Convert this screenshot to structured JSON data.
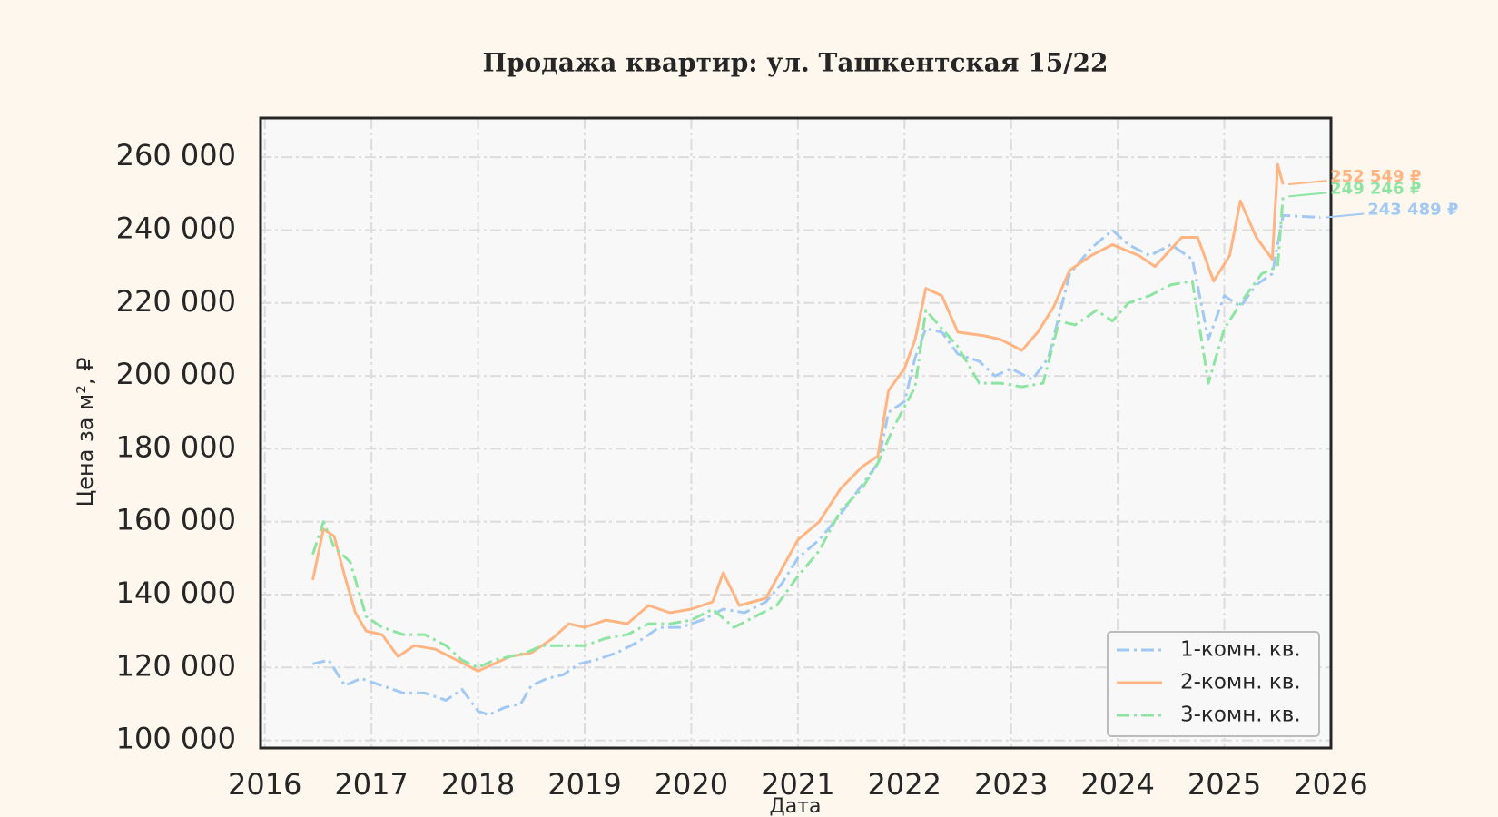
{
  "chart_data": {
    "type": "line",
    "title": "Продажа квартир: ул. Ташкентская 15/22",
    "x_label": "Дата",
    "y_label": "Цена за м², ₽",
    "xlim": [
      2015.96,
      2026.0
    ],
    "xticks": [
      2016,
      2017,
      2018,
      2019,
      2020,
      2021,
      2022,
      2023,
      2024,
      2025,
      2026
    ],
    "ylim": [
      97900,
      270750
    ],
    "yticks": [
      {
        "value": 100000,
        "label": "100 000"
      },
      {
        "value": 120000,
        "label": "120 000"
      },
      {
        "value": 140000,
        "label": "140 000"
      },
      {
        "value": 160000,
        "label": "160 000"
      },
      {
        "value": 180000,
        "label": "180 000"
      },
      {
        "value": 200000,
        "label": "200 000"
      },
      {
        "value": 220000,
        "label": "220 000"
      },
      {
        "value": 240000,
        "label": "240 000"
      },
      {
        "value": 260000,
        "label": "260 000"
      }
    ],
    "grid": true,
    "legend": "lower right",
    "series": [
      {
        "name": "1-комн. кв.",
        "color": "#a1c9f4",
        "dash": "dashdot",
        "x": [
          2016.45,
          2016.6,
          2016.75,
          2016.9,
          2017.1,
          2017.3,
          2017.5,
          2017.7,
          2017.85,
          2018.0,
          2018.1,
          2018.25,
          2018.4,
          2018.5,
          2018.65,
          2018.8,
          2018.95,
          2019.1,
          2019.3,
          2019.5,
          2019.7,
          2019.9,
          2020.1,
          2020.3,
          2020.5,
          2020.7,
          2020.85,
          2021.0,
          2021.2,
          2021.4,
          2021.6,
          2021.75,
          2021.85,
          2022.0,
          2022.1,
          2022.2,
          2022.35,
          2022.5,
          2022.7,
          2022.85,
          2023.0,
          2023.2,
          2023.35,
          2023.55,
          2023.75,
          2023.95,
          2024.1,
          2024.3,
          2024.5,
          2024.7,
          2024.85,
          2025.0,
          2025.15,
          2025.3,
          2025.45,
          2025.55,
          2025.9
        ],
        "values": [
          121000,
          122000,
          115000,
          117000,
          115000,
          113000,
          113000,
          111000,
          114000,
          108000,
          107000,
          109000,
          110000,
          115000,
          117000,
          118000,
          121000,
          122000,
          124000,
          127000,
          131000,
          131000,
          133000,
          136000,
          135000,
          138000,
          143000,
          150000,
          155000,
          162000,
          170000,
          176000,
          190000,
          193000,
          205000,
          213000,
          212000,
          206000,
          204000,
          200000,
          202000,
          199000,
          205000,
          228000,
          235000,
          240000,
          236000,
          233000,
          236000,
          232000,
          210000,
          222000,
          219000,
          225000,
          228000,
          244000,
          243489
        ]
      },
      {
        "name": "2-комн. кв.",
        "color": "#ffb482",
        "dash": "solid",
        "x": [
          2016.45,
          2016.55,
          2016.65,
          2016.75,
          2016.85,
          2016.95,
          2017.1,
          2017.25,
          2017.4,
          2017.6,
          2017.8,
          2018.0,
          2018.15,
          2018.3,
          2018.5,
          2018.7,
          2018.85,
          2019.0,
          2019.2,
          2019.4,
          2019.6,
          2019.8,
          2020.0,
          2020.2,
          2020.3,
          2020.45,
          2020.7,
          2020.85,
          2021.0,
          2021.2,
          2021.4,
          2021.6,
          2021.75,
          2021.85,
          2022.0,
          2022.1,
          2022.2,
          2022.35,
          2022.5,
          2022.75,
          2022.9,
          2023.1,
          2023.25,
          2023.4,
          2023.55,
          2023.75,
          2023.95,
          2024.2,
          2024.35,
          2024.6,
          2024.75,
          2024.9,
          2025.05,
          2025.15,
          2025.3,
          2025.45,
          2025.5,
          2025.55
        ],
        "values": [
          144000,
          158000,
          156000,
          145000,
          135000,
          130000,
          129000,
          123000,
          126000,
          125000,
          122000,
          119000,
          121000,
          123000,
          124000,
          128000,
          132000,
          131000,
          133000,
          132000,
          137000,
          135000,
          136000,
          138000,
          146000,
          137000,
          139000,
          147000,
          155000,
          160000,
          169000,
          175000,
          178000,
          196000,
          202000,
          210000,
          224000,
          222000,
          212000,
          211000,
          210000,
          207000,
          212000,
          219000,
          229000,
          233000,
          236000,
          233000,
          230000,
          238000,
          238000,
          226000,
          233000,
          248000,
          238000,
          232000,
          258000,
          252549
        ]
      },
      {
        "name": "3-комн. кв.",
        "color": "#8de5a1",
        "dash": "dashdot",
        "x": [
          2016.45,
          2016.55,
          2016.65,
          2016.8,
          2016.95,
          2017.1,
          2017.3,
          2017.5,
          2017.7,
          2017.85,
          2018.0,
          2018.15,
          2018.3,
          2018.45,
          2018.6,
          2018.8,
          2019.0,
          2019.2,
          2019.4,
          2019.6,
          2019.8,
          2020.0,
          2020.2,
          2020.4,
          2020.6,
          2020.8,
          2021.0,
          2021.2,
          2021.4,
          2021.6,
          2021.75,
          2021.9,
          2022.1,
          2022.2,
          2022.35,
          2022.5,
          2022.7,
          2022.9,
          2023.1,
          2023.3,
          2023.45,
          2023.6,
          2023.8,
          2023.95,
          2024.1,
          2024.3,
          2024.5,
          2024.7,
          2024.85,
          2025.0,
          2025.2,
          2025.35,
          2025.5,
          2025.55
        ],
        "values": [
          151000,
          160000,
          153000,
          149000,
          134000,
          131000,
          129000,
          129000,
          126000,
          122000,
          120000,
          122000,
          123000,
          124000,
          126000,
          126000,
          126000,
          128000,
          129000,
          132000,
          132000,
          133000,
          136000,
          131000,
          134000,
          137000,
          145000,
          152000,
          163000,
          169000,
          176000,
          186000,
          197000,
          218000,
          213000,
          208000,
          198000,
          198000,
          197000,
          198000,
          215000,
          214000,
          218000,
          215000,
          220000,
          222000,
          225000,
          226000,
          198000,
          213000,
          222000,
          228000,
          230000,
          249246
        ]
      }
    ],
    "annotations": [
      {
        "label": "252 549 ₽",
        "value": 252549,
        "series": 1
      },
      {
        "label": "243 489 ₽",
        "value": 243489,
        "series": 0
      },
      {
        "label": "249 246 ₽",
        "value": 249246,
        "series": 2
      }
    ]
  }
}
